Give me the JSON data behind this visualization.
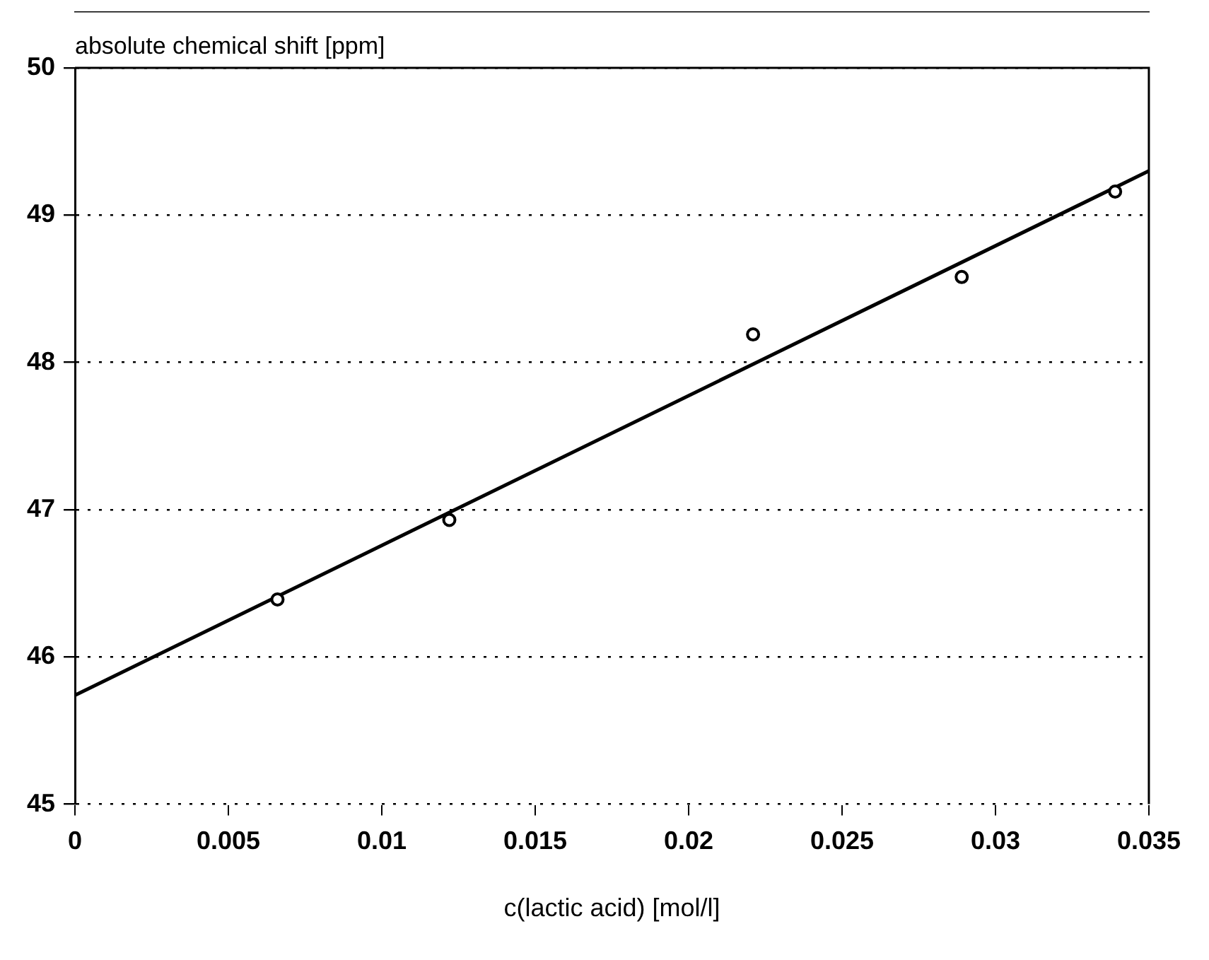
{
  "chart_data": {
    "type": "scatter",
    "ylabel": "absolute chemical shift [ppm]",
    "xlabel": "c(lactic acid) [mol/l]",
    "xlim": [
      0,
      0.035
    ],
    "xticks": [
      0,
      0.005,
      0.01,
      0.015,
      0.02,
      0.025,
      0.03,
      0.035
    ],
    "ylim": [
      45,
      50
    ],
    "yticks": [
      45,
      46,
      47,
      48,
      49,
      50
    ],
    "grid": "y",
    "legend": false,
    "series": [
      {
        "color": "#000000",
        "marker": "circle",
        "x": [
          0.0066,
          0.0122,
          0.0221,
          0.0289,
          0.0339
        ],
        "values": [
          46.39,
          46.93,
          48.19,
          48.58,
          49.16
        ]
      },
      {
        "type": "line",
        "color": "#000000",
        "marker": "none",
        "x": [
          0,
          0.035
        ],
        "values": [
          45.74,
          49.3
        ]
      }
    ]
  }
}
